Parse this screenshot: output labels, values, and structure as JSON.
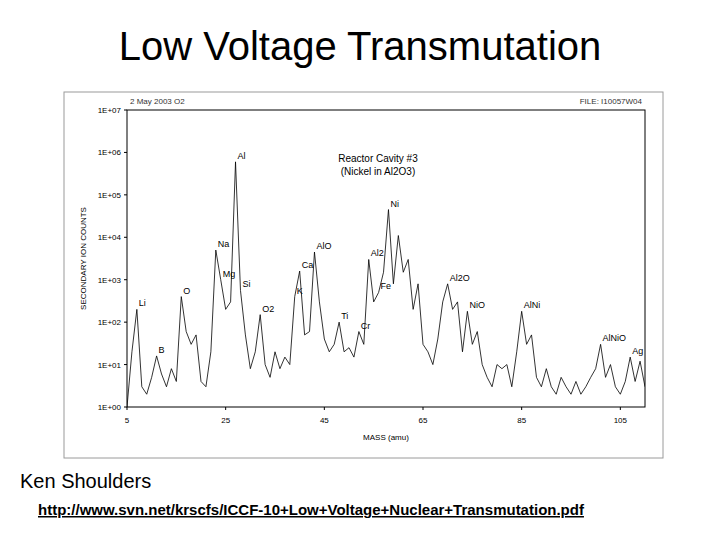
{
  "slide": {
    "title": "Low Voltage Transmutation",
    "author": "Ken Shoulders",
    "url": "http://www.svn.net/krscfs/ICCF-10+Low+Voltage+Nuclear+Transmutation.pdf"
  },
  "chart_data": {
    "type": "line",
    "title": "Reactor Cavity #3",
    "subtitle": "(Nickel in Al2O3)",
    "header": [
      "2 May 2003   O2",
      "FILE: I10057W04"
    ],
    "x_label": "MASS (amu)",
    "y_label": "SECONDARY ION COUNTS",
    "x": [
      5,
      6,
      7,
      8,
      9,
      10,
      11,
      12,
      13,
      14,
      15,
      16,
      17,
      18,
      19,
      20,
      21,
      22,
      23,
      24,
      25,
      26,
      27,
      28,
      29,
      30,
      31,
      32,
      33,
      34,
      35,
      36,
      37,
      38,
      39,
      40,
      41,
      42,
      43,
      44,
      45,
      46,
      47,
      48,
      49,
      50,
      51,
      52,
      53,
      54,
      55,
      56,
      57,
      58,
      59,
      60,
      61,
      62,
      63,
      64,
      65,
      66,
      67,
      68,
      69,
      70,
      71,
      72,
      73,
      74,
      75,
      76,
      77,
      78,
      79,
      80,
      81,
      82,
      83,
      84,
      85,
      86,
      87,
      88,
      89,
      90,
      91,
      92,
      93,
      94,
      95,
      96,
      97,
      98,
      99,
      100,
      101,
      102,
      103,
      104,
      105,
      106,
      107,
      108,
      109,
      110
    ],
    "values": [
      1,
      20,
      200,
      3,
      2,
      5,
      16,
      6,
      3,
      8,
      4,
      400,
      60,
      30,
      50,
      4,
      3,
      20,
      5000,
      1000,
      200,
      300,
      600000,
      560,
      50,
      8,
      20,
      150,
      10,
      5,
      20,
      8,
      15,
      10,
      400,
      1600,
      50,
      60,
      4500,
      300,
      40,
      20,
      30,
      100,
      20,
      25,
      15,
      60,
      30,
      3000,
      300,
      500,
      1500,
      45000,
      800,
      11000,
      1500,
      3000,
      200,
      800,
      30,
      20,
      10,
      40,
      300,
      800,
      200,
      300,
      20,
      180,
      30,
      60,
      10,
      5,
      3,
      10,
      8,
      10,
      3,
      20,
      180,
      30,
      50,
      5,
      3,
      8,
      3,
      2,
      5,
      3,
      2,
      4,
      2,
      3,
      5,
      8,
      30,
      5,
      10,
      3,
      2,
      4,
      15,
      4,
      12,
      3
    ],
    "color": "#000000",
    "line_style": "solid",
    "log": "y",
    "grid": false,
    "xlim": [
      5,
      110
    ],
    "xticks": [
      5,
      25,
      45,
      65,
      85,
      105
    ],
    "ylim": [
      1,
      10000000
    ],
    "yticks": [
      {
        "value": 1,
        "label": "1E+00"
      },
      {
        "value": 10,
        "label": "1E+01"
      },
      {
        "value": 100,
        "label": "1E+02"
      },
      {
        "value": 1000,
        "label": "1E+03"
      },
      {
        "value": 10000,
        "label": "1E+04"
      },
      {
        "value": 100000,
        "label": "1E+05"
      },
      {
        "value": 1000000,
        "label": "1E+06"
      },
      {
        "value": 10000000,
        "label": "1E+07"
      }
    ],
    "annotations": [
      {
        "text": "Li",
        "x": 7
      },
      {
        "text": "B",
        "x": 11
      },
      {
        "text": "O",
        "x": 16
      },
      {
        "text": "Na",
        "x": 23
      },
      {
        "text": "Mg",
        "x": 24
      },
      {
        "text": "Al",
        "x": 27
      },
      {
        "text": "Si",
        "x": 28
      },
      {
        "text": "O2",
        "x": 32
      },
      {
        "text": "K",
        "x": 39
      },
      {
        "text": "Ca",
        "x": 40
      },
      {
        "text": "AlO",
        "x": 43
      },
      {
        "text": "Ti",
        "x": 48
      },
      {
        "text": "Cr",
        "x": 52
      },
      {
        "text": "Al2",
        "x": 54
      },
      {
        "text": "Fe",
        "x": 56
      },
      {
        "text": "Ni",
        "x": 58
      },
      {
        "text": "Al2O",
        "x": 70
      },
      {
        "text": "NiO",
        "x": 74
      },
      {
        "text": "AlNi",
        "x": 85
      },
      {
        "text": "AlNiO",
        "x": 101
      },
      {
        "text": "Ag",
        "x": 107
      }
    ]
  }
}
